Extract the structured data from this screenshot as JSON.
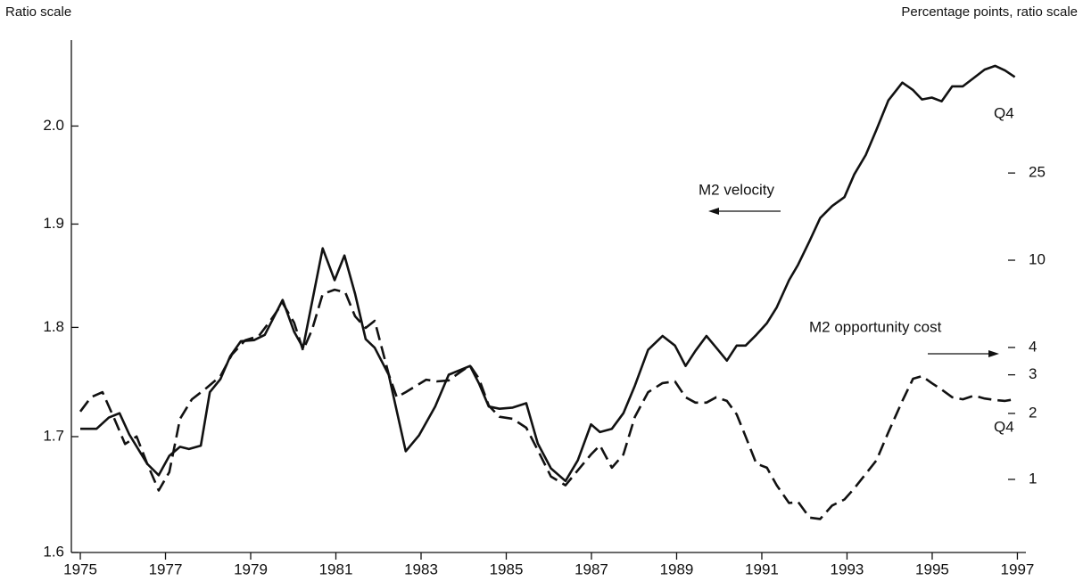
{
  "chart_data": {
    "type": "line",
    "y_label": "Ratio scale",
    "y2_label": "Percentage points, ratio scale",
    "xlim": [
      1974.79,
      1997.2
    ],
    "xticks": [
      1975,
      1977,
      1979,
      1981,
      1983,
      1985,
      1987,
      1989,
      1991,
      1993,
      1995,
      1997
    ],
    "ylim": [
      1.6,
      2.092
    ],
    "yticks": [
      1.6,
      1.7,
      1.8,
      1.9,
      {
        "value": 2,
        "label": "2.0"
      }
    ],
    "ylog": true,
    "y2lim": [
      0.464,
      101
    ],
    "y2ticks": [
      1,
      2,
      3,
      4,
      10,
      25
    ],
    "y2log": true,
    "annotations": [
      "Q4",
      "Q4"
    ],
    "series": [
      {
        "name": "M2 velocity",
        "color": "#111111",
        "style": "solid",
        "x": [
          1975.0,
          1975.38,
          1975.67,
          1975.92,
          1976.15,
          1976.57,
          1976.84,
          1977.09,
          1977.34,
          1977.55,
          1977.83,
          1978.04,
          1978.29,
          1978.52,
          1978.77,
          1979.08,
          1979.33,
          1979.75,
          1980.02,
          1980.23,
          1980.69,
          1980.97,
          1981.2,
          1981.45,
          1981.7,
          1981.91,
          1982.24,
          1982.64,
          1982.95,
          1983.33,
          1983.65,
          1983.9,
          1984.15,
          1984.36,
          1984.59,
          1984.84,
          1985.15,
          1985.47,
          1985.74,
          1986.05,
          1986.39,
          1986.68,
          1986.99,
          1987.2,
          1987.48,
          1987.75,
          1988.02,
          1988.33,
          1988.67,
          1988.96,
          1989.21,
          1989.44,
          1989.7,
          1989.93,
          1990.18,
          1990.41,
          1990.62,
          1990.87,
          1991.12,
          1991.35,
          1991.64,
          1991.85,
          1992.12,
          1992.37,
          1992.65,
          1992.94,
          1993.17,
          1993.44,
          1993.69,
          1993.97,
          1994.3,
          1994.55,
          1994.76,
          1994.99,
          1995.22,
          1995.47,
          1995.72,
          1995.98,
          1996.23,
          1996.48,
          1996.71,
          1996.94
        ],
        "values": [
          1.707,
          1.707,
          1.717,
          1.721,
          1.702,
          1.676,
          1.666,
          1.683,
          1.691,
          1.689,
          1.692,
          1.74,
          1.752,
          1.773,
          1.787,
          1.788,
          1.793,
          1.826,
          1.796,
          1.781,
          1.876,
          1.845,
          1.869,
          1.832,
          1.789,
          1.781,
          1.756,
          1.687,
          1.701,
          1.727,
          1.756,
          1.76,
          1.764,
          1.748,
          1.727,
          1.725,
          1.726,
          1.73,
          1.694,
          1.672,
          1.661,
          1.679,
          1.711,
          1.704,
          1.707,
          1.721,
          1.746,
          1.779,
          1.792,
          1.783,
          1.764,
          1.778,
          1.792,
          1.781,
          1.769,
          1.783,
          1.783,
          1.793,
          1.804,
          1.819,
          1.845,
          1.86,
          1.883,
          1.906,
          1.918,
          1.927,
          1.95,
          1.97,
          1.996,
          2.027,
          2.046,
          2.038,
          2.028,
          2.03,
          2.026,
          2.042,
          2.042,
          2.051,
          2.06,
          2.064,
          2.059,
          2.052
        ]
      },
      {
        "name": "M2 opportunity cost",
        "color": "#111111",
        "style": "dashed",
        "axis": "y2",
        "x": [
          1975.0,
          1975.25,
          1975.52,
          1975.8,
          1976.05,
          1976.32,
          1976.57,
          1976.84,
          1977.09,
          1977.34,
          1977.62,
          1977.97,
          1978.29,
          1978.56,
          1978.87,
          1979.19,
          1979.46,
          1979.75,
          1980.02,
          1980.23,
          1980.44,
          1980.69,
          1980.97,
          1981.22,
          1981.45,
          1981.7,
          1981.91,
          1982.24,
          1982.43,
          1982.64,
          1983.12,
          1983.37,
          1983.65,
          1983.9,
          1984.15,
          1984.36,
          1984.59,
          1984.84,
          1985.15,
          1985.47,
          1985.74,
          1986.05,
          1986.39,
          1986.68,
          1986.99,
          1987.2,
          1987.48,
          1987.75,
          1988.02,
          1988.33,
          1988.67,
          1988.96,
          1989.21,
          1989.44,
          1989.7,
          1989.93,
          1990.18,
          1990.41,
          1990.62,
          1990.87,
          1991.12,
          1991.35,
          1991.64,
          1991.85,
          1992.12,
          1992.37,
          1992.65,
          1992.94,
          1993.17,
          1993.44,
          1993.69,
          1993.97,
          1994.3,
          1994.55,
          1994.76,
          1994.99,
          1995.22,
          1995.47,
          1995.72,
          1995.98,
          1996.23,
          1996.48,
          1996.71,
          1996.94
        ],
        "values": [
          2.04,
          2.37,
          2.5,
          1.89,
          1.45,
          1.57,
          1.18,
          0.89,
          1.08,
          1.89,
          2.32,
          2.62,
          2.96,
          3.71,
          4.31,
          4.51,
          5.29,
          6.38,
          5.19,
          3.88,
          4.82,
          7.01,
          7.34,
          7.14,
          5.55,
          4.91,
          5.29,
          3.02,
          2.37,
          2.5,
          2.85,
          2.8,
          2.83,
          3.07,
          3.31,
          2.88,
          2.17,
          1.93,
          1.89,
          1.72,
          1.36,
          1.03,
          0.94,
          1.1,
          1.3,
          1.43,
          1.13,
          1.3,
          1.93,
          2.5,
          2.75,
          2.8,
          2.37,
          2.24,
          2.24,
          2.37,
          2.28,
          1.98,
          1.57,
          1.18,
          1.13,
          0.94,
          0.78,
          0.79,
          0.67,
          0.66,
          0.76,
          0.81,
          0.91,
          1.06,
          1.22,
          1.64,
          2.28,
          2.88,
          2.96,
          2.75,
          2.57,
          2.37,
          2.32,
          2.41,
          2.34,
          2.3,
          2.28,
          2.32
        ]
      }
    ]
  }
}
